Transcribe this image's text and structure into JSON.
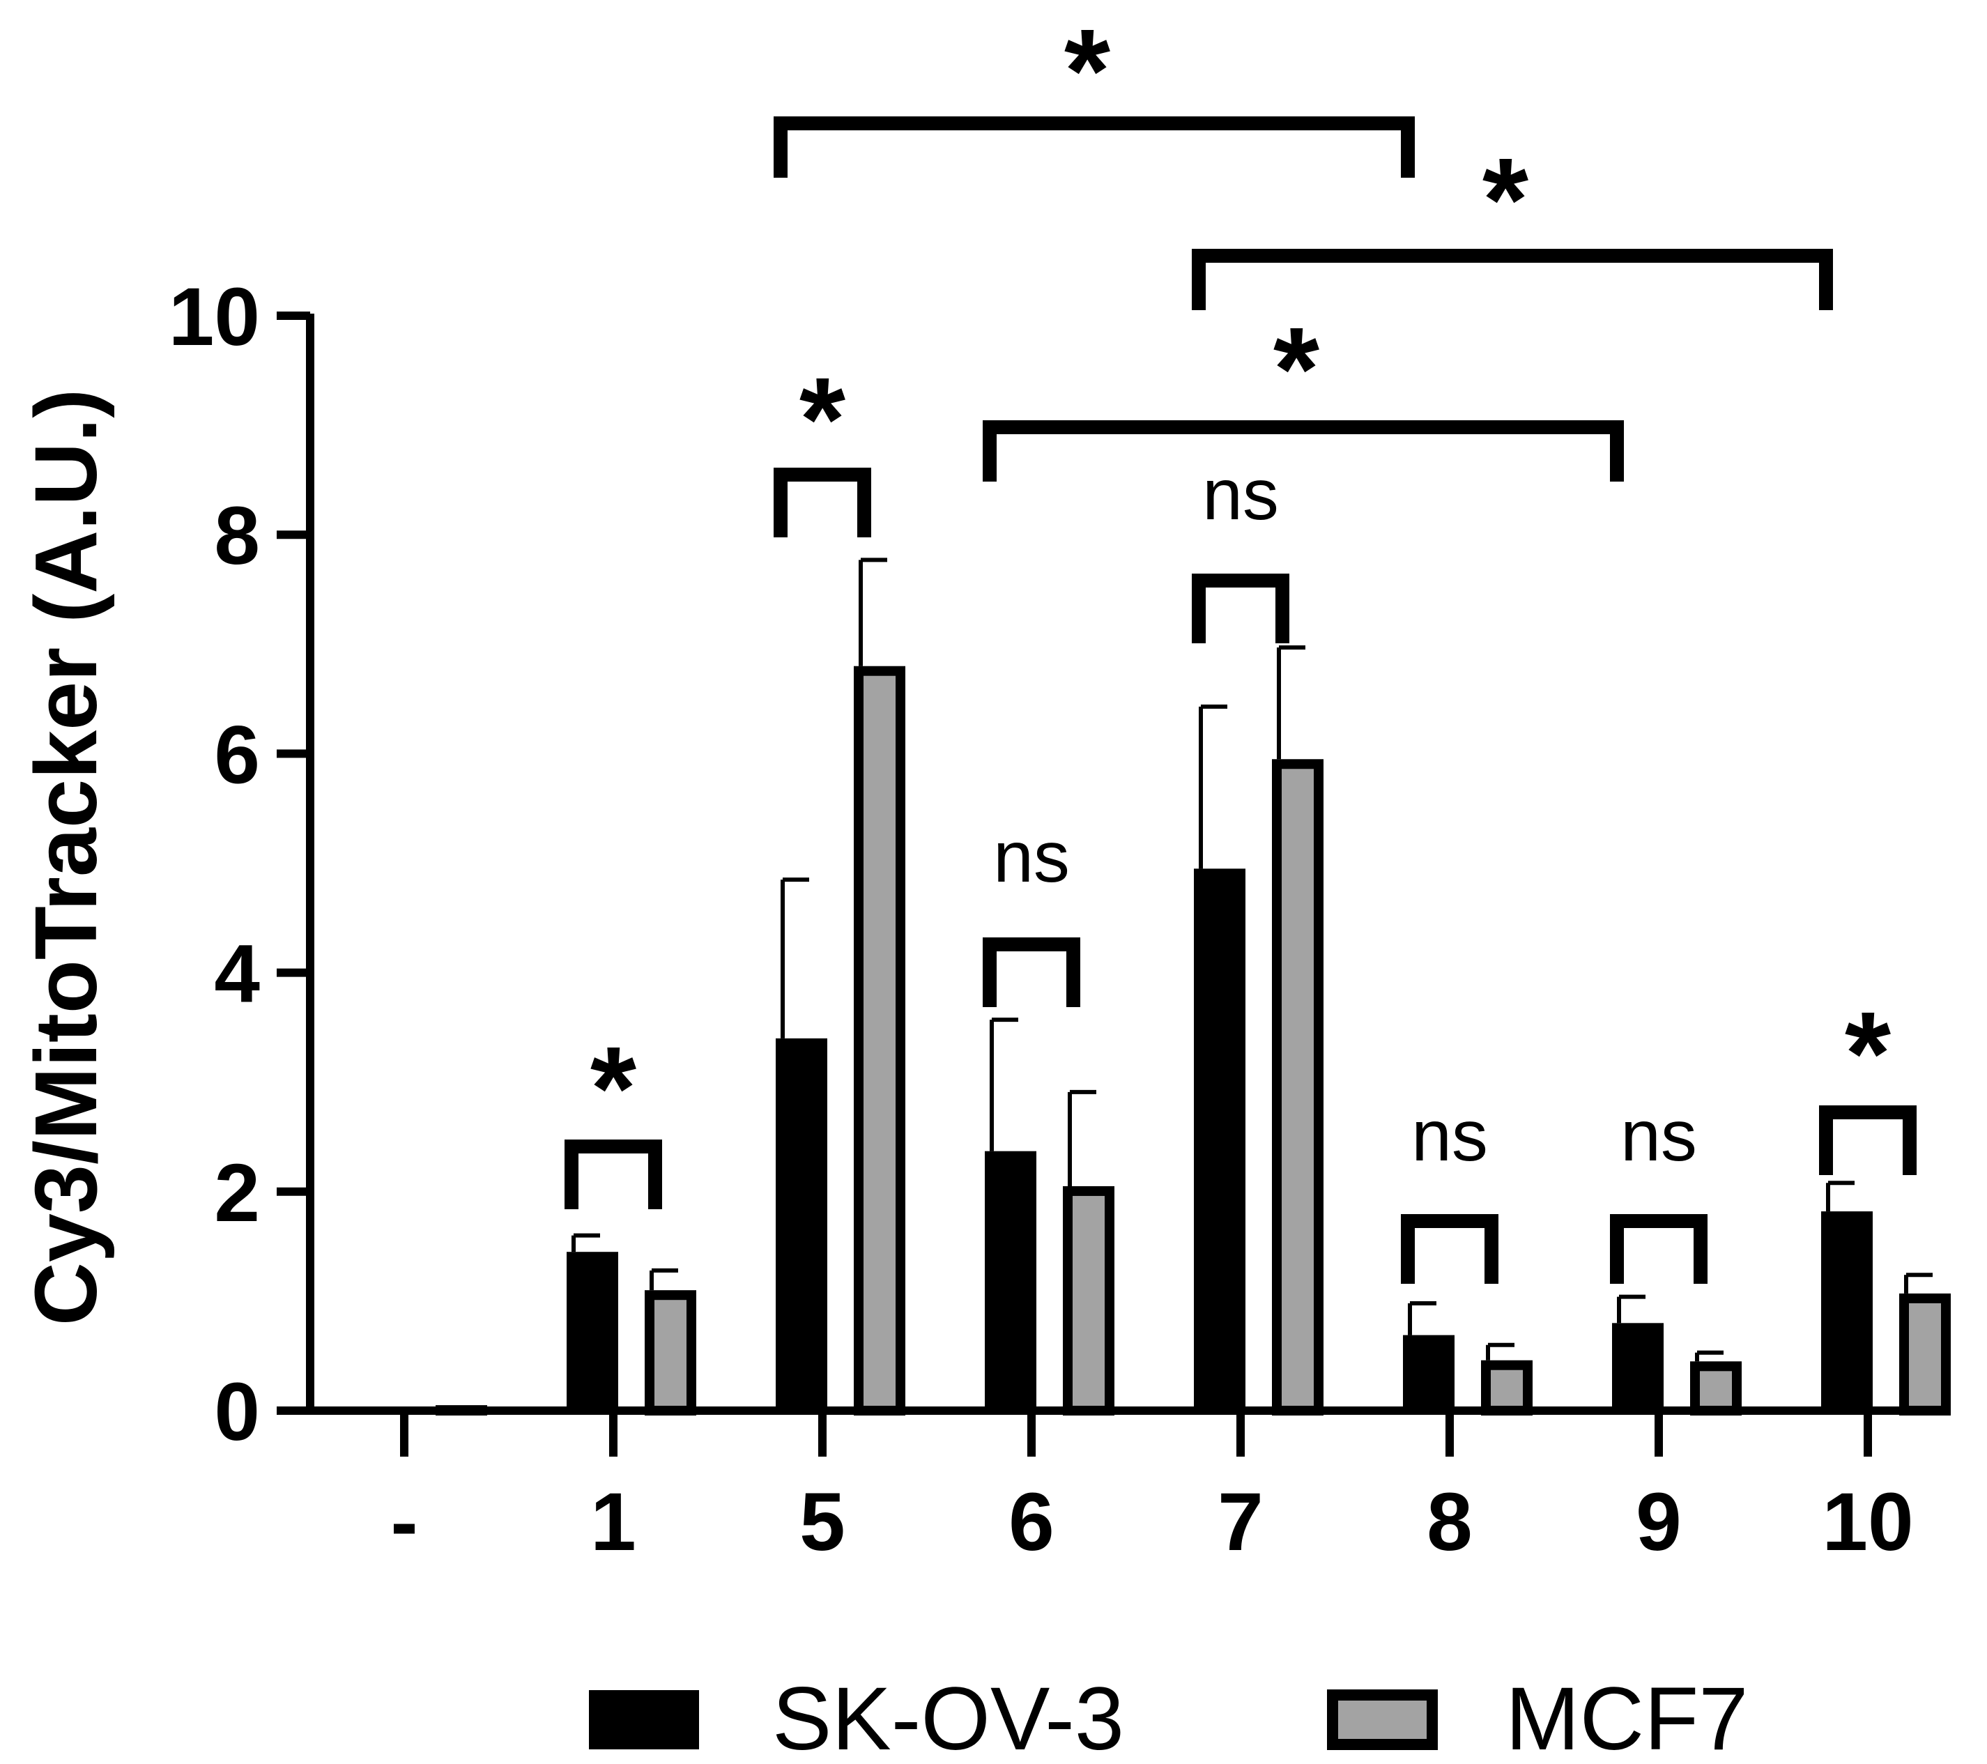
{
  "chart_data": {
    "type": "bar",
    "ylabel": "Cy3/MitoTracker (A.U.)",
    "xlabel": "",
    "ylim": [
      0,
      10
    ],
    "yticks": [
      0,
      2,
      4,
      6,
      8,
      10
    ],
    "categories": [
      "-",
      "1",
      "5",
      "6",
      "7",
      "8",
      "9",
      "10"
    ],
    "series": [
      {
        "name": "SK-OV-3",
        "color": "#000000",
        "values": [
          0.0,
          1.45,
          3.4,
          2.37,
          4.95,
          0.69,
          0.8,
          1.82
        ],
        "errors": [
          0.0,
          0.15,
          1.45,
          1.2,
          1.48,
          0.29,
          0.24,
          0.26
        ]
      },
      {
        "name": "MCF7",
        "color": "#a3a3a3",
        "values": [
          0.05,
          1.1,
          6.8,
          2.05,
          5.95,
          0.46,
          0.45,
          1.07
        ],
        "errors": [
          0.0,
          0.18,
          0.97,
          0.86,
          1.02,
          0.14,
          0.08,
          0.17
        ]
      }
    ],
    "within_group_significance": [
      {
        "category": "1",
        "label": "*"
      },
      {
        "category": "5",
        "label": "*"
      },
      {
        "category": "6",
        "label": "ns"
      },
      {
        "category": "7",
        "label": "ns"
      },
      {
        "category": "8",
        "label": "ns"
      },
      {
        "category": "9",
        "label": "ns"
      },
      {
        "category": "10",
        "label": "*"
      }
    ],
    "between_group_significance": [
      {
        "from": "5",
        "to": "8",
        "label": "*"
      },
      {
        "from": "7",
        "to": "10",
        "label": "*"
      },
      {
        "from": "6",
        "to": "9",
        "label": "*"
      }
    ],
    "legend": [
      "SK-OV-3",
      "MCF7"
    ],
    "legend_position": "bottom"
  }
}
